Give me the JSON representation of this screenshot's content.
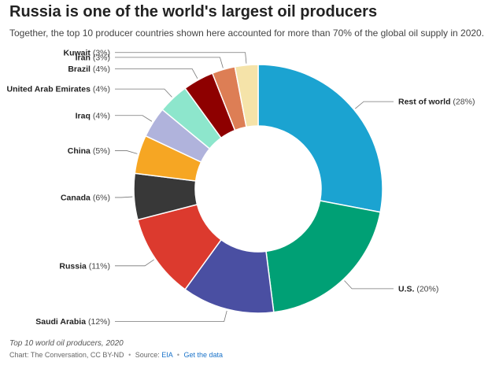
{
  "title": "Russia is one of the world's largest oil producers",
  "subtitle": "Together, the top 10 producer countries shown here accounted for more than 70% of the global oil supply in 2020.",
  "footer": {
    "caption": "Top 10 world oil producers, 2020",
    "credit_prefix": "Chart: The Conversation, CC BY-ND",
    "source_prefix": "Source:",
    "source_link": "EIA",
    "get_data": "Get the data",
    "separator": "•"
  },
  "chart_data": {
    "type": "pie",
    "variant": "donut",
    "title": "",
    "slices": [
      {
        "name": "Rest of world",
        "value": 28,
        "label": "(28%)",
        "color": "#1ba3d1"
      },
      {
        "name": "U.S.",
        "value": 20,
        "label": "(20%)",
        "color": "#00a075"
      },
      {
        "name": "Saudi Arabia",
        "value": 12,
        "label": "(12%)",
        "color": "#4a4fa2"
      },
      {
        "name": "Russia",
        "value": 11,
        "label": "(11%)",
        "color": "#dc3a2e"
      },
      {
        "name": "Canada",
        "value": 6,
        "label": "(6%)",
        "color": "#383838"
      },
      {
        "name": "China",
        "value": 5,
        "label": "(5%)",
        "color": "#f6a623"
      },
      {
        "name": "Iraq",
        "value": 4,
        "label": "(4%)",
        "color": "#b0b3dc"
      },
      {
        "name": "United Arab Emirates",
        "value": 4,
        "label": "(4%)",
        "color": "#8de6cc"
      },
      {
        "name": "Brazil",
        "value": 4,
        "label": "(4%)",
        "color": "#8e0000"
      },
      {
        "name": "Iran",
        "value": 3,
        "label": "(3%)",
        "color": "#dd7e55"
      },
      {
        "name": "Kuwait",
        "value": 3,
        "label": "(3%)",
        "color": "#f5e3a9"
      }
    ]
  }
}
